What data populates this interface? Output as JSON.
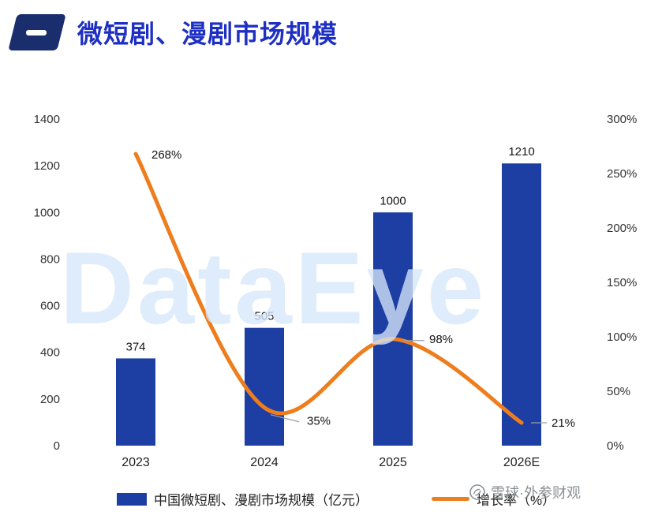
{
  "header": {
    "title": "微短剧、漫剧市场规模"
  },
  "chart_data": {
    "type": "bar",
    "combo": "bar+line",
    "title": "微短剧、漫剧市场规模",
    "categories": [
      "2023",
      "2024",
      "2025",
      "2026E"
    ],
    "series": [
      {
        "name": "中国微短剧、漫剧市场规模（亿元）",
        "type": "bar",
        "axis": "left",
        "values": [
          374,
          505,
          1000,
          1210
        ],
        "labels": [
          "374",
          "505",
          "1000",
          "1210"
        ],
        "color": "#1d3ea2"
      },
      {
        "name": "增长率（%）",
        "type": "line",
        "axis": "right",
        "values": [
          268,
          35,
          98,
          21
        ],
        "labels": [
          "268%",
          "35%",
          "98%",
          "21%"
        ],
        "color": "#ee7d1d"
      }
    ],
    "left_axis": {
      "min": 0,
      "max": 1400,
      "ticks": [
        "0",
        "200",
        "400",
        "600",
        "800",
        "1000",
        "1200",
        "1400"
      ]
    },
    "right_axis": {
      "min": 0,
      "max": 300,
      "ticks": [
        "0%",
        "50%",
        "100%",
        "150%",
        "200%",
        "250%",
        "300%"
      ]
    },
    "grid": false,
    "legend_position": "bottom"
  },
  "legend": {
    "bar_label": "中国微短剧、漫剧市场规模（亿元）",
    "line_label": "增长率（%）"
  },
  "watermark": {
    "text": "DataEye"
  },
  "branding": {
    "text": "雪球·外参财观"
  },
  "colors": {
    "bar": "#1d3ea2",
    "line": "#ee7d1d",
    "title": "#1e2fc4",
    "watermark": "#dfeafc",
    "connector": "#9aa0a6"
  }
}
